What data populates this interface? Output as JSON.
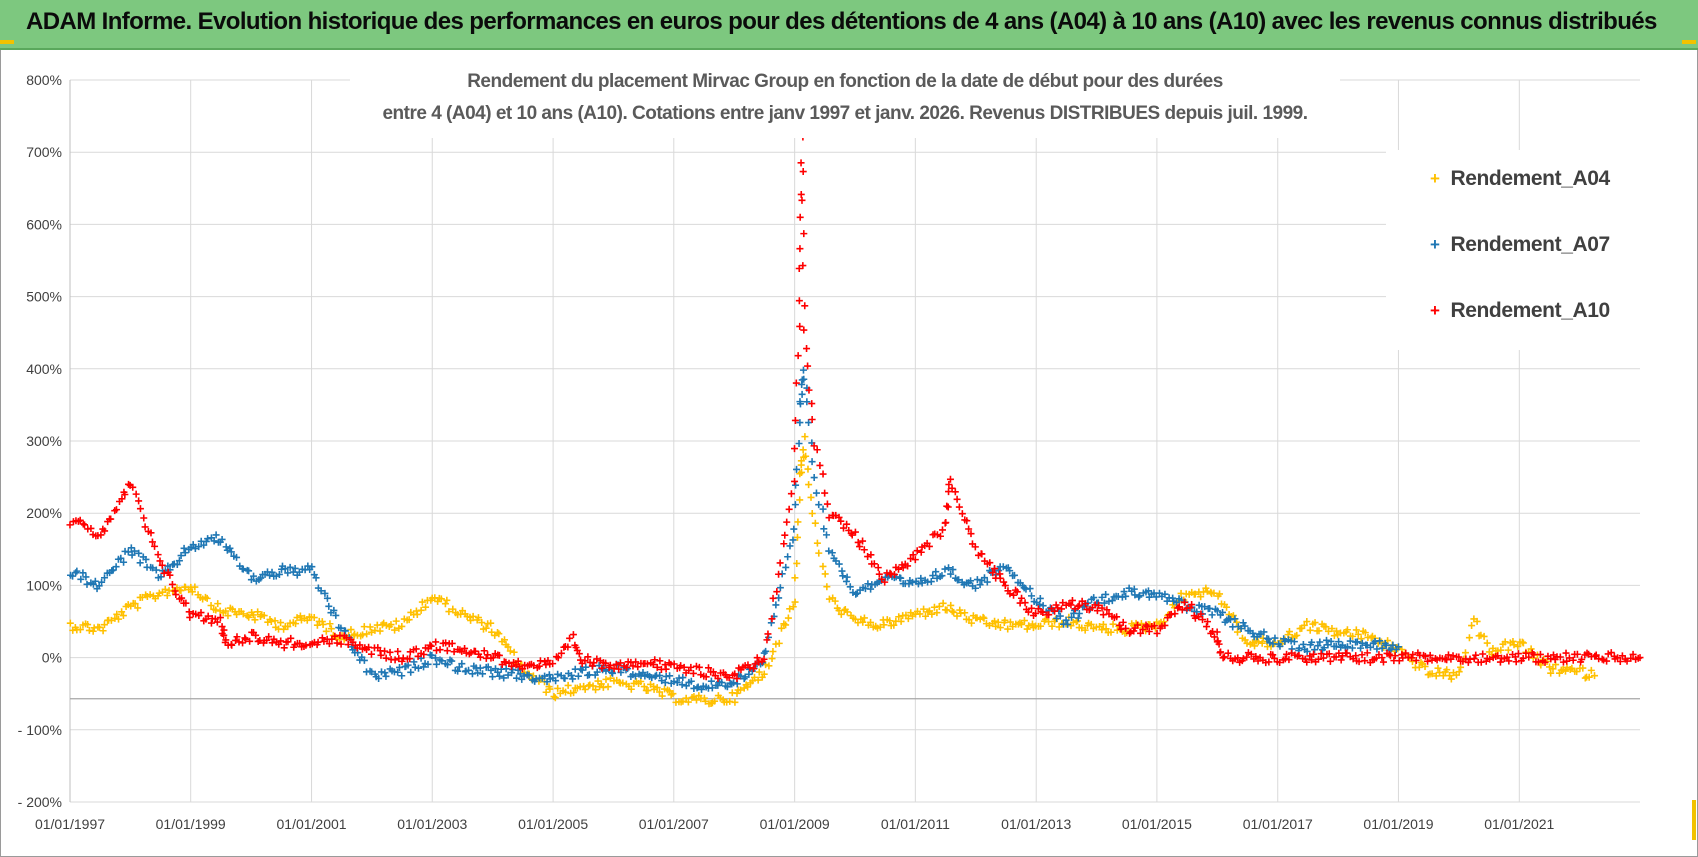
{
  "banner": {
    "title": "ADAM Informe. Evolution historique des performances en euros pour des détentions de 4 ans (A04) à 10 ans (A10) avec les revenus connus distribués"
  },
  "colors": {
    "banner_bg": "#7dc87f",
    "corner_accent": "#f2c200",
    "series_a04": "#ffc000",
    "series_a07": "#1f77b4",
    "series_a10": "#ff0000"
  },
  "chart_data": {
    "type": "scatter",
    "title_line1": "Rendement du placement Mirvac Group  en fonction de la date de début pour des durées",
    "title_line2": "entre 4 (A04) et 10 ans (A10). Cotations entre janv 1997 et janv. 2026. Revenus DISTRIBUES depuis juil. 1999.",
    "xlabel": "",
    "ylabel": "",
    "ylim": [
      -200,
      800
    ],
    "xlim": [
      "1997-01-01",
      "2023-01-01"
    ],
    "y_ticks": [
      800,
      700,
      600,
      500,
      400,
      300,
      200,
      100,
      0,
      -100,
      -200
    ],
    "y_tick_labels": [
      "800%",
      "700%",
      "600%",
      "500%",
      "400%",
      "300%",
      "200%",
      "100%",
      "0%",
      "- 100%",
      "- 200%"
    ],
    "x_tick_labels": [
      "01/01/1997",
      "01/01/1999",
      "01/01/2001",
      "01/01/2003",
      "01/01/2005",
      "01/01/2007",
      "01/01/2009",
      "01/01/2011",
      "01/01/2013",
      "01/01/2015",
      "01/01/2017",
      "01/01/2019",
      "01/01/2021"
    ],
    "grid": true,
    "legend_position": "top-right",
    "marker": "+",
    "series": [
      {
        "name": "Rendement_A04",
        "color": "#ffc000",
        "points": [
          [
            "1997-01-01",
            45
          ],
          [
            "1997-07-01",
            40
          ],
          [
            "1998-01-01",
            70
          ],
          [
            "1998-07-01",
            90
          ],
          [
            "1999-01-01",
            100
          ],
          [
            "1999-07-01",
            65
          ],
          [
            "2000-01-01",
            60
          ],
          [
            "2000-07-01",
            45
          ],
          [
            "2001-01-01",
            55
          ],
          [
            "2001-07-01",
            30
          ],
          [
            "2002-01-01",
            40
          ],
          [
            "2002-07-01",
            45
          ],
          [
            "2003-01-01",
            85
          ],
          [
            "2003-07-01",
            60
          ],
          [
            "2004-01-01",
            40
          ],
          [
            "2004-07-01",
            -15
          ],
          [
            "2005-01-01",
            -50
          ],
          [
            "2005-07-01",
            -40
          ],
          [
            "2006-01-01",
            -35
          ],
          [
            "2006-07-01",
            -40
          ],
          [
            "2007-01-01",
            -55
          ],
          [
            "2007-07-01",
            -60
          ],
          [
            "2008-01-01",
            -55
          ],
          [
            "2008-07-01",
            -20
          ],
          [
            "2009-01-01",
            80
          ],
          [
            "2009-02-01",
            250
          ],
          [
            "2009-03-01",
            300
          ],
          [
            "2009-05-01",
            180
          ],
          [
            "2009-08-01",
            80
          ],
          [
            "2010-01-01",
            50
          ],
          [
            "2010-07-01",
            45
          ],
          [
            "2011-01-01",
            60
          ],
          [
            "2011-07-01",
            70
          ],
          [
            "2012-01-01",
            50
          ],
          [
            "2012-07-01",
            45
          ],
          [
            "2013-01-01",
            45
          ],
          [
            "2013-07-01",
            50
          ],
          [
            "2014-01-01",
            40
          ],
          [
            "2014-07-01",
            40
          ],
          [
            "2015-01-01",
            45
          ],
          [
            "2015-07-01",
            90
          ],
          [
            "2016-01-01",
            90
          ],
          [
            "2016-07-01",
            20
          ],
          [
            "2017-01-01",
            20
          ],
          [
            "2017-07-01",
            45
          ],
          [
            "2018-01-01",
            35
          ],
          [
            "2018-07-01",
            30
          ],
          [
            "2019-01-01",
            10
          ],
          [
            "2019-07-01",
            -20
          ],
          [
            "2020-01-01",
            -25
          ],
          [
            "2020-04-01",
            50
          ],
          [
            "2020-07-01",
            10
          ],
          [
            "2021-01-01",
            20
          ],
          [
            "2021-07-01",
            -15
          ],
          [
            "2022-01-01",
            -20
          ],
          [
            "2022-04-01",
            -25
          ]
        ]
      },
      {
        "name": "Rendement_A07",
        "color": "#1f77b4",
        "points": [
          [
            "1997-01-01",
            120
          ],
          [
            "1997-07-01",
            100
          ],
          [
            "1998-01-01",
            150
          ],
          [
            "1998-07-01",
            110
          ],
          [
            "1999-01-01",
            155
          ],
          [
            "1999-07-01",
            165
          ],
          [
            "2000-01-01",
            110
          ],
          [
            "2000-07-01",
            120
          ],
          [
            "2001-01-01",
            120
          ],
          [
            "2001-07-01",
            40
          ],
          [
            "2002-01-01",
            -25
          ],
          [
            "2002-07-01",
            -20
          ],
          [
            "2003-01-01",
            0
          ],
          [
            "2003-07-01",
            -15
          ],
          [
            "2004-01-01",
            -20
          ],
          [
            "2004-07-01",
            -25
          ],
          [
            "2005-01-01",
            -30
          ],
          [
            "2005-07-01",
            -20
          ],
          [
            "2006-01-01",
            -15
          ],
          [
            "2006-07-01",
            -25
          ],
          [
            "2007-01-01",
            -30
          ],
          [
            "2007-07-01",
            -40
          ],
          [
            "2008-01-01",
            -35
          ],
          [
            "2008-07-01",
            0
          ],
          [
            "2009-01-01",
            180
          ],
          [
            "2009-02-01",
            350
          ],
          [
            "2009-03-01",
            400
          ],
          [
            "2009-05-01",
            250
          ],
          [
            "2009-08-01",
            150
          ],
          [
            "2010-01-01",
            90
          ],
          [
            "2010-07-01",
            110
          ],
          [
            "2011-01-01",
            100
          ],
          [
            "2011-07-01",
            120
          ],
          [
            "2012-01-01",
            100
          ],
          [
            "2012-07-01",
            130
          ],
          [
            "2013-01-01",
            80
          ],
          [
            "2013-07-01",
            50
          ],
          [
            "2014-01-01",
            80
          ],
          [
            "2014-07-01",
            90
          ],
          [
            "2015-01-01",
            90
          ],
          [
            "2015-07-01",
            70
          ],
          [
            "2016-01-01",
            60
          ],
          [
            "2016-07-01",
            40
          ],
          [
            "2017-01-01",
            20
          ],
          [
            "2017-07-01",
            15
          ],
          [
            "2018-01-01",
            20
          ],
          [
            "2018-07-01",
            20
          ],
          [
            "2019-01-01",
            15
          ]
        ]
      },
      {
        "name": "Rendement_A10",
        "color": "#ff0000",
        "points": [
          [
            "1997-01-01",
            190
          ],
          [
            "1997-07-01",
            170
          ],
          [
            "1998-01-01",
            240
          ],
          [
            "1998-07-01",
            130
          ],
          [
            "1999-01-01",
            60
          ],
          [
            "1999-07-01",
            50
          ],
          [
            "1999-08-01",
            20
          ],
          [
            "2000-01-01",
            30
          ],
          [
            "2000-07-01",
            20
          ],
          [
            "2001-01-01",
            20
          ],
          [
            "2001-07-01",
            25
          ],
          [
            "2002-01-01",
            10
          ],
          [
            "2002-07-01",
            0
          ],
          [
            "2003-01-01",
            15
          ],
          [
            "2003-07-01",
            15
          ],
          [
            "2004-01-01",
            0
          ],
          [
            "2004-07-01",
            -10
          ],
          [
            "2005-01-01",
            -10
          ],
          [
            "2005-05-01",
            25
          ],
          [
            "2005-07-01",
            -5
          ],
          [
            "2006-01-01",
            -10
          ],
          [
            "2006-07-01",
            -5
          ],
          [
            "2007-01-01",
            -15
          ],
          [
            "2007-07-01",
            -20
          ],
          [
            "2008-01-01",
            -25
          ],
          [
            "2008-07-01",
            0
          ],
          [
            "2009-01-01",
            250
          ],
          [
            "2009-02-01",
            500
          ],
          [
            "2009-02-15",
            715
          ],
          [
            "2009-03-01",
            450
          ],
          [
            "2009-05-01",
            300
          ],
          [
            "2009-08-01",
            200
          ],
          [
            "2010-01-01",
            170
          ],
          [
            "2010-07-01",
            110
          ],
          [
            "2011-01-01",
            140
          ],
          [
            "2011-07-01",
            180
          ],
          [
            "2011-08-01",
            250
          ],
          [
            "2012-01-01",
            150
          ],
          [
            "2012-07-01",
            100
          ],
          [
            "2013-01-01",
            60
          ],
          [
            "2013-07-01",
            75
          ],
          [
            "2014-01-01",
            70
          ],
          [
            "2014-07-01",
            40
          ],
          [
            "2015-01-01",
            40
          ],
          [
            "2015-07-01",
            75
          ],
          [
            "2016-01-01",
            30
          ],
          [
            "2016-02-01",
            0
          ],
          [
            "2017-01-01",
            0
          ],
          [
            "2018-01-01",
            0
          ],
          [
            "2019-01-01",
            0
          ],
          [
            "2020-01-01",
            0
          ],
          [
            "2021-01-01",
            0
          ],
          [
            "2022-01-01",
            0
          ],
          [
            "2023-01-01",
            0
          ]
        ]
      }
    ]
  }
}
